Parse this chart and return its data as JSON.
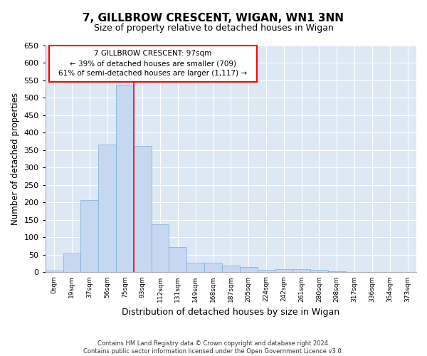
{
  "title": "7, GILLBROW CRESCENT, WIGAN, WN1 3NN",
  "subtitle": "Size of property relative to detached houses in Wigan",
  "xlabel": "Distribution of detached houses by size in Wigan",
  "ylabel": "Number of detached properties",
  "bar_color": "#c5d8f0",
  "bar_edge_color": "#7aadd4",
  "background_color": "#dde8f5",
  "grid_color": "#ffffff",
  "categories": [
    "0sqm",
    "19sqm",
    "37sqm",
    "56sqm",
    "75sqm",
    "93sqm",
    "112sqm",
    "131sqm",
    "149sqm",
    "168sqm",
    "187sqm",
    "205sqm",
    "224sqm",
    "242sqm",
    "261sqm",
    "280sqm",
    "298sqm",
    "317sqm",
    "336sqm",
    "354sqm",
    "373sqm"
  ],
  "values": [
    5,
    53,
    207,
    367,
    537,
    362,
    137,
    72,
    28,
    28,
    20,
    15,
    7,
    10,
    10,
    8,
    2,
    0,
    0,
    0,
    0
  ],
  "ylim": [
    0,
    650
  ],
  "yticks": [
    0,
    50,
    100,
    150,
    200,
    250,
    300,
    350,
    400,
    450,
    500,
    550,
    600,
    650
  ],
  "property_line_x": 4.5,
  "annotation_line1": "7 GILLBROW CRESCENT: 97sqm",
  "annotation_line2": "← 39% of detached houses are smaller (709)",
  "annotation_line3": "61% of semi-detached houses are larger (1,117) →",
  "footer_line1": "Contains HM Land Registry data © Crown copyright and database right 2024.",
  "footer_line2": "Contains public sector information licensed under the Open Government Licence v3.0.",
  "fig_width": 6.0,
  "fig_height": 5.0,
  "fig_dpi": 100
}
